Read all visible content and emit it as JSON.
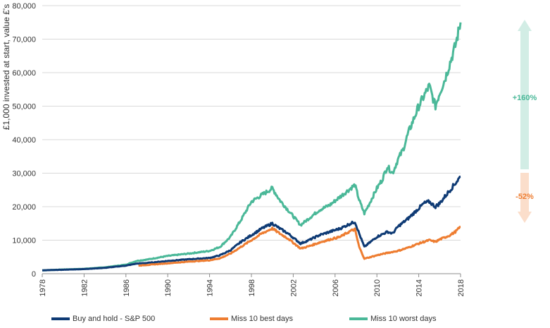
{
  "chart_data": {
    "type": "line",
    "title": "",
    "xlabel": "",
    "ylabel": "£1,000 invested at start, value £'s",
    "ylim": [
      0,
      80000
    ],
    "xlim": [
      1978,
      2018
    ],
    "grid": true,
    "legend_position": "bottom",
    "y_ticks": [
      "0",
      "10,000",
      "20,000",
      "30,000",
      "40,000",
      "50,000",
      "60,000",
      "70,000",
      "80,000"
    ],
    "y_tick_values": [
      0,
      10000,
      20000,
      30000,
      40000,
      50000,
      60000,
      70000,
      80000
    ],
    "x_ticks": [
      "1978",
      "1982",
      "1986",
      "1990",
      "1994",
      "1998",
      "2002",
      "2006",
      "2010",
      "2014",
      "2018"
    ],
    "x_tick_values": [
      1978,
      1982,
      1986,
      1990,
      1994,
      1998,
      2002,
      2006,
      2010,
      2014,
      2018
    ],
    "series": [
      {
        "name": "Miss 10 worst days",
        "color": "#4ab898",
        "x": [
          1978,
          1980,
          1982,
          1984,
          1986,
          1987,
          1988,
          1990,
          1992,
          1994,
          1995,
          1996,
          1997,
          1998,
          1999,
          2000,
          2000.7,
          2001.5,
          2002.7,
          2003.5,
          2004.5,
          2005.5,
          2006.5,
          2007.5,
          2007.9,
          2008.3,
          2008.8,
          2009.3,
          2010,
          2010.5,
          2011,
          2011.5,
          2012,
          2012.5,
          2013,
          2013.5,
          2014,
          2014.5,
          2015,
          2015.3,
          2015.6,
          2016,
          2016.5,
          2017,
          2017.5,
          2018
        ],
        "values": [
          1000,
          1250,
          1450,
          1900,
          2700,
          3800,
          4200,
          5300,
          6000,
          6800,
          8000,
          11000,
          16000,
          21500,
          23500,
          25500,
          22000,
          19000,
          14500,
          16500,
          19000,
          20500,
          23000,
          25500,
          26500,
          22000,
          18000,
          21000,
          25500,
          28000,
          32000,
          30000,
          34000,
          37000,
          42000,
          46000,
          50000,
          53000,
          56000,
          53000,
          50000,
          54000,
          58000,
          63000,
          68000,
          75000
        ]
      },
      {
        "name": "Buy and hold - S&P 500",
        "color": "#0e3a74",
        "x": [
          1978,
          1980,
          1982,
          1984,
          1986,
          1987,
          1988,
          1990,
          1992,
          1994,
          1995,
          1996,
          1997,
          1998,
          1999,
          2000,
          2000.7,
          2001.5,
          2002.7,
          2003.5,
          2004.5,
          2005.5,
          2006.5,
          2007.5,
          2007.9,
          2008.3,
          2008.8,
          2009.2,
          2010,
          2011,
          2011.5,
          2012,
          2013,
          2014,
          2014.5,
          2015,
          2015.6,
          2016,
          2016.5,
          2017,
          2017.5,
          2018
        ],
        "values": [
          1000,
          1180,
          1380,
          1750,
          2400,
          3000,
          3200,
          3800,
          4300,
          4700,
          5500,
          7000,
          9500,
          11500,
          13500,
          15000,
          13500,
          12000,
          9000,
          10000,
          11500,
          12500,
          13500,
          15000,
          15500,
          12000,
          8000,
          9000,
          11000,
          12500,
          12000,
          14000,
          16500,
          19500,
          21000,
          21500,
          20000,
          21000,
          23000,
          25000,
          27000,
          29000
        ]
      },
      {
        "name": "Miss 10 best days",
        "color": "#ee7d31",
        "x": [
          1987.2,
          1988,
          1990,
          1992,
          1994,
          1995,
          1996,
          1997,
          1998,
          1999,
          2000,
          2000.7,
          2001.5,
          2002.7,
          2003.5,
          2004.5,
          2005.5,
          2006.5,
          2007.5,
          2007.9,
          2008.3,
          2008.8,
          2009.2,
          2010,
          2011,
          2012,
          2013,
          2014,
          2015,
          2015.6,
          2016,
          2017,
          2017.5,
          2018
        ],
        "values": [
          2400,
          2600,
          3100,
          3600,
          4000,
          4600,
          6000,
          8000,
          10000,
          12000,
          13500,
          12000,
          10500,
          7500,
          8200,
          9300,
          10200,
          11000,
          12800,
          13200,
          8000,
          4500,
          4800,
          5500,
          6200,
          6800,
          7800,
          9000,
          10000,
          9500,
          10200,
          11500,
          12500,
          14000
        ]
      }
    ],
    "annotations": [
      {
        "text": "+160%",
        "color": "#4ab898",
        "direction": "up"
      },
      {
        "text": "-52%",
        "color": "#ee7d31",
        "direction": "down"
      }
    ]
  }
}
